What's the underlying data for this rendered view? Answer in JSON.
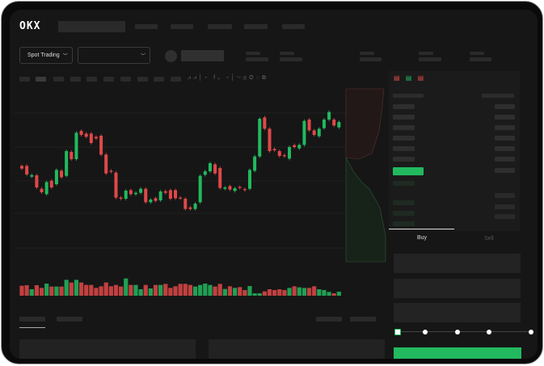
{
  "brand": {
    "logo": "OKX"
  },
  "toolbar": {
    "market_type": "Spot Trading",
    "pair_dropdown": ""
  },
  "order_form": {
    "tabs": [
      {
        "label": "Buy",
        "active": true
      },
      {
        "label": "Sell",
        "active": false
      }
    ],
    "slider_percent": 0
  },
  "colors": {
    "up": "#22b95f",
    "down": "#e04848",
    "background": "#161616",
    "panel": "#1b1b1b"
  },
  "icons": [
    "chevron-down-icon",
    "orderbook-both-icon",
    "orderbook-bids-icon",
    "orderbook-asks-icon",
    "line-tool-icon",
    "pen-icon",
    "magnet-icon",
    "lock-icon"
  ],
  "chart_data": {
    "type": "candlestick",
    "title": "",
    "xlabel": "",
    "ylabel": "",
    "grid": true,
    "candles": [
      [
        25,
        24
      ],
      [
        25,
        21.8
      ],
      [
        21,
        21.6
      ],
      [
        21.5,
        17
      ],
      [
        16.5,
        15.2
      ],
      [
        14.5,
        19
      ],
      [
        19.5,
        17
      ],
      [
        18.2,
        23.5
      ],
      [
        23.2,
        20.8
      ],
      [
        21.3,
        30.5
      ],
      [
        30.2,
        27.5
      ],
      [
        27.5,
        37.3
      ],
      [
        38,
        36.5
      ],
      [
        37,
        35.8
      ],
      [
        37,
        33.5
      ],
      [
        35.8,
        35.2
      ],
      [
        36.2,
        29.2
      ],
      [
        29.2,
        22.2
      ],
      [
        23.2,
        22.8
      ],
      [
        22.5,
        13.2
      ],
      [
        13.2,
        12.8
      ],
      [
        12.8,
        15.8
      ],
      [
        16,
        14.5
      ],
      [
        14.5,
        15
      ],
      [
        15,
        16.5
      ],
      [
        16.5,
        11.5
      ],
      [
        11.5,
        12.5
      ],
      [
        13,
        12
      ],
      [
        12.2,
        15.5
      ],
      [
        15.6,
        15
      ],
      [
        16,
        12.8
      ],
      [
        16,
        13
      ],
      [
        13.2,
        13
      ],
      [
        12.8,
        9
      ],
      [
        9.6,
        9
      ],
      [
        9,
        11
      ],
      [
        11.5,
        21.3
      ],
      [
        21.7,
        23
      ],
      [
        23,
        26
      ],
      [
        25.6,
        22.2
      ],
      [
        24.2,
        16.8
      ],
      [
        16.5,
        17
      ],
      [
        17.5,
        16.2
      ],
      [
        15.7,
        16.7
      ],
      [
        17.2,
        16.8
      ],
      [
        16.4,
        16
      ],
      [
        16.5,
        23.5
      ],
      [
        23.2,
        28.5
      ],
      [
        28.5,
        42.5
      ],
      [
        43,
        38.8
      ],
      [
        38.8,
        30.5
      ],
      [
        31.3,
        30.8
      ],
      [
        30.5,
        28.7
      ],
      [
        29,
        28.6
      ],
      [
        27.7,
        32
      ],
      [
        32.7,
        32
      ],
      [
        31.5,
        32.8
      ],
      [
        32.8,
        41.7
      ],
      [
        42.2,
        38.2
      ],
      [
        38.2,
        36.5
      ],
      [
        36,
        38.8
      ],
      [
        39,
        42.2
      ],
      [
        42.2,
        45
      ],
      [
        42.2,
        40
      ],
      [
        39.3,
        41.3
      ]
    ],
    "volume": [
      37,
      39,
      24,
      39,
      29,
      45,
      34,
      34,
      34,
      59,
      49,
      59,
      49,
      40,
      40,
      29,
      35,
      49,
      35,
      40,
      34,
      64,
      40,
      40,
      24,
      40,
      27,
      40,
      40,
      44,
      29,
      35,
      44,
      44,
      40,
      34,
      40,
      45,
      40,
      34,
      44,
      25,
      35,
      29,
      32,
      21,
      36,
      9,
      9,
      16,
      24,
      21,
      24,
      21,
      29,
      35,
      31,
      29,
      29,
      35,
      24,
      21,
      14,
      9,
      15
    ]
  }
}
